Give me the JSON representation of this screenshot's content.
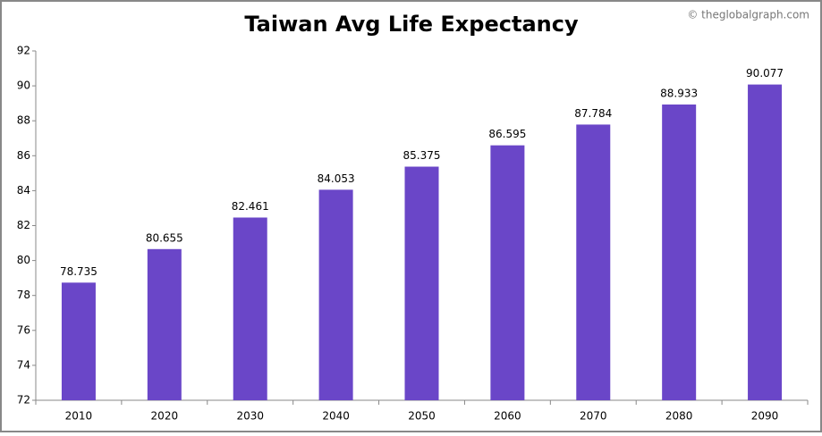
{
  "chart_data": {
    "type": "bar",
    "title": "Taiwan Avg Life Expectancy",
    "watermark": "© theglobalgraph.com",
    "categories": [
      "2010",
      "2020",
      "2030",
      "2040",
      "2050",
      "2060",
      "2070",
      "2080",
      "2090"
    ],
    "values": [
      78.735,
      80.655,
      82.461,
      84.053,
      85.375,
      86.595,
      87.784,
      88.933,
      90.077
    ],
    "color": "#6a46c8",
    "ylim": [
      72,
      92
    ],
    "yticks": [
      72,
      74,
      76,
      78,
      80,
      82,
      84,
      86,
      88,
      90,
      92
    ],
    "grid": false
  }
}
